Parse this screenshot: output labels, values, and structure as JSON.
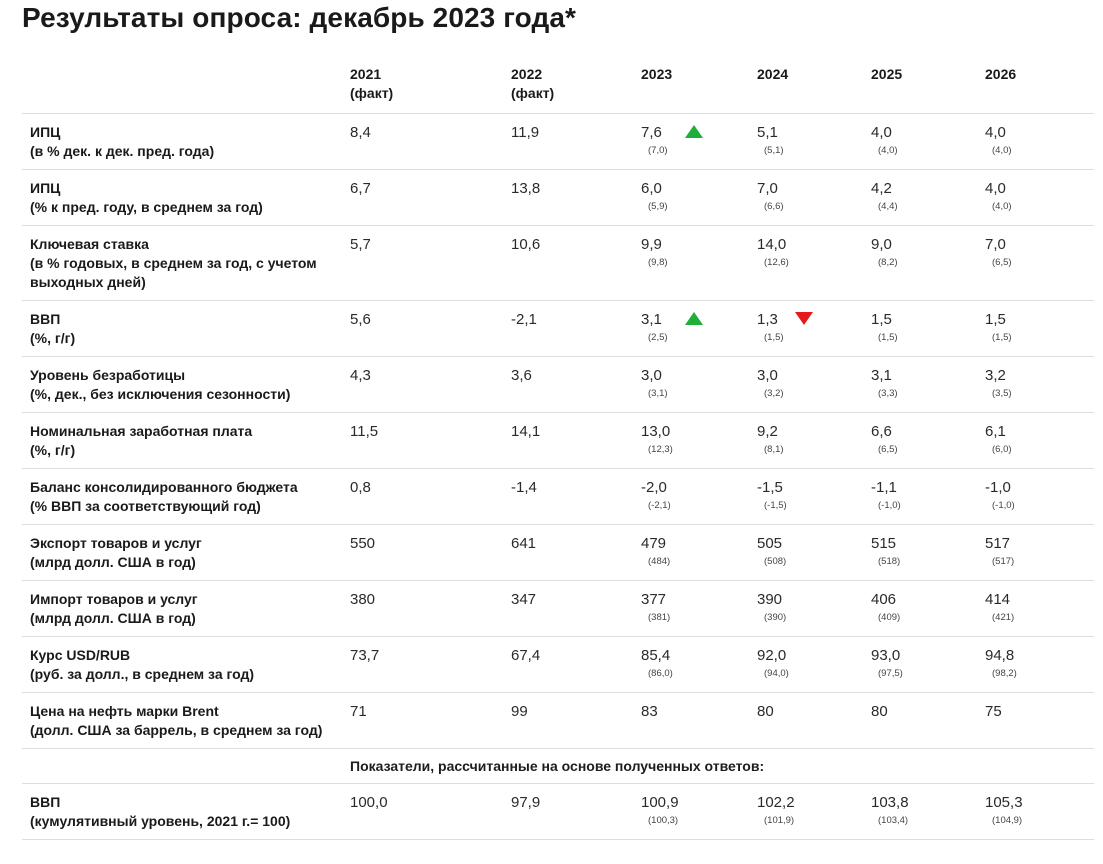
{
  "title": "Результаты опроса: декабрь 2023 года*",
  "header": {
    "columns": [
      {
        "year": "2021",
        "note": "(факт)"
      },
      {
        "year": "2022",
        "note": "(факт)"
      },
      {
        "year": "2023",
        "note": ""
      },
      {
        "year": "2024",
        "note": ""
      },
      {
        "year": "2025",
        "note": ""
      },
      {
        "year": "2026",
        "note": ""
      }
    ]
  },
  "rows": [
    {
      "label": [
        "ИПЦ",
        "(в % дек. к дек. пред. года)"
      ],
      "values": [
        "8,4",
        "11,9",
        "7,6",
        "5,1",
        "4,0",
        "4,0"
      ],
      "prev": [
        "",
        "",
        "(7,0)",
        "(5,1)",
        "(4,0)",
        "(4,0)"
      ],
      "arrows": [
        "",
        "",
        "up",
        "",
        "",
        ""
      ]
    },
    {
      "label": [
        "ИПЦ",
        "(% к пред. году, в среднем за год)"
      ],
      "values": [
        "6,7",
        "13,8",
        "6,0",
        "7,0",
        "4,2",
        "4,0"
      ],
      "prev": [
        "",
        "",
        "(5,9)",
        "(6,6)",
        "(4,4)",
        "(4,0)"
      ],
      "arrows": [
        "",
        "",
        "",
        "",
        "",
        ""
      ]
    },
    {
      "label": [
        "Ключевая ставка",
        "(в % годовых, в среднем за год, с учетом",
        "выходных дней)"
      ],
      "values": [
        "5,7",
        "10,6",
        "9,9",
        "14,0",
        "9,0",
        "7,0"
      ],
      "prev": [
        "",
        "",
        "(9,8)",
        "(12,6)",
        "(8,2)",
        "(6,5)"
      ],
      "arrows": [
        "",
        "",
        "",
        "",
        "",
        ""
      ]
    },
    {
      "label": [
        "ВВП",
        "(%, г/г)"
      ],
      "values": [
        "5,6",
        "-2,1",
        "3,1",
        "1,3",
        "1,5",
        "1,5"
      ],
      "prev": [
        "",
        "",
        "(2,5)",
        "(1,5)",
        "(1,5)",
        "(1,5)"
      ],
      "arrows": [
        "",
        "",
        "up",
        "down",
        "",
        ""
      ]
    },
    {
      "label": [
        "Уровень безработицы",
        "(%, дек., без исключения сезонности)"
      ],
      "values": [
        "4,3",
        "3,6",
        "3,0",
        "3,0",
        "3,1",
        "3,2"
      ],
      "prev": [
        "",
        "",
        "(3,1)",
        "(3,2)",
        "(3,3)",
        "(3,5)"
      ],
      "arrows": [
        "",
        "",
        "",
        "",
        "",
        ""
      ]
    },
    {
      "label": [
        "Номинальная заработная плата",
        "(%, г/г)"
      ],
      "values": [
        "11,5",
        "14,1",
        "13,0",
        "9,2",
        "6,6",
        "6,1"
      ],
      "prev": [
        "",
        "",
        "(12,3)",
        "(8,1)",
        "(6,5)",
        "(6,0)"
      ],
      "arrows": [
        "",
        "",
        "",
        "",
        "",
        ""
      ]
    },
    {
      "label": [
        "Баланс консолидированного бюджета",
        "(% ВВП за соответствующий год)"
      ],
      "values": [
        "0,8",
        "-1,4",
        "-2,0",
        "-1,5",
        "-1,1",
        "-1,0"
      ],
      "prev": [
        "",
        "",
        "(-2,1)",
        "(-1,5)",
        "(-1,0)",
        "(-1,0)"
      ],
      "arrows": [
        "",
        "",
        "",
        "",
        "",
        ""
      ]
    },
    {
      "label": [
        "Экспорт товаров и услуг",
        "(млрд долл. США в год)"
      ],
      "values": [
        "550",
        "641",
        "479",
        "505",
        "515",
        "517"
      ],
      "prev": [
        "",
        "",
        "(484)",
        "(508)",
        "(518)",
        "(517)"
      ],
      "arrows": [
        "",
        "",
        "",
        "",
        "",
        ""
      ]
    },
    {
      "label": [
        "Импорт товаров и услуг",
        "(млрд долл. США в год)"
      ],
      "values": [
        "380",
        "347",
        "377",
        "390",
        "406",
        "414"
      ],
      "prev": [
        "",
        "",
        "(381)",
        "(390)",
        "(409)",
        "(421)"
      ],
      "arrows": [
        "",
        "",
        "",
        "",
        "",
        ""
      ]
    },
    {
      "label": [
        "Курс USD/RUB",
        "(руб. за долл., в среднем за год)"
      ],
      "values": [
        "73,7",
        "67,4",
        "85,4",
        "92,0",
        "93,0",
        "94,8"
      ],
      "prev": [
        "",
        "",
        "(86,0)",
        "(94,0)",
        "(97,5)",
        "(98,2)"
      ],
      "arrows": [
        "",
        "",
        "",
        "",
        "",
        ""
      ]
    },
    {
      "label": [
        "Цена на нефть марки Brent",
        "(долл. США за баррель, в среднем за год)"
      ],
      "values": [
        "71",
        "99",
        "83",
        "80",
        "80",
        "75"
      ],
      "prev": [
        "",
        "",
        "",
        "",
        "",
        ""
      ],
      "arrows": [
        "",
        "",
        "",
        "",
        "",
        ""
      ]
    }
  ],
  "computed_header": "Показатели, рассчитанные на основе полученных ответов:",
  "computed_rows": [
    {
      "label": [
        "ВВП",
        "(кумулятивный уровень, 2021 г.= 100)"
      ],
      "values": [
        "100,0",
        "97,9",
        "100,9",
        "102,2",
        "103,8",
        "105,3"
      ],
      "prev": [
        "",
        "",
        "(100,3)",
        "(101,9)",
        "(103,4)",
        "(104,9)"
      ],
      "arrows": [
        "",
        "",
        "",
        "",
        "",
        ""
      ]
    }
  ],
  "colors": {
    "arrow_up": "#1fae3a",
    "arrow_down": "#e51b1b",
    "divider": "#dedede"
  }
}
